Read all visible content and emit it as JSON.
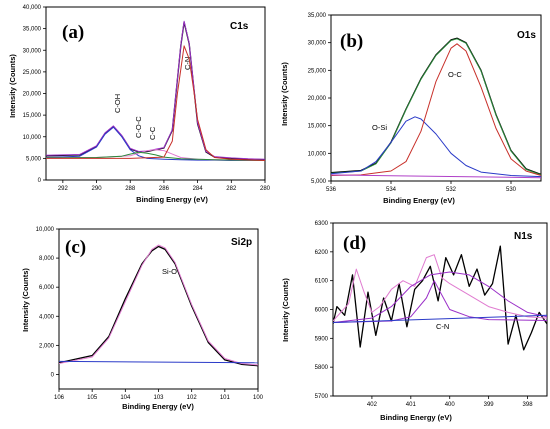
{
  "chart_data": [
    {
      "type": "line",
      "panel": "(a)",
      "title": "C1s",
      "xlabel": "Binding Energy (eV)",
      "ylabel": "Intensity (Counts)",
      "xlim": [
        293,
        280
      ],
      "ylim": [
        0,
        40000
      ],
      "xticks": [
        "292",
        "290",
        "288",
        "286",
        "284",
        "282",
        "280"
      ],
      "yticks": [
        "0",
        "5,000",
        "10,000",
        "15,000",
        "20,000",
        "25,000",
        "30,000",
        "35,000",
        "40,000"
      ],
      "annotations": [
        "C-OH",
        "C-O-C",
        "C-C",
        "C-N"
      ],
      "legend": "none",
      "series": [
        {
          "color": "#000000",
          "x": [
            293,
            291,
            290,
            289.5,
            289,
            288.5,
            288,
            287.5,
            287,
            286.5,
            286,
            285.5,
            285,
            284.8,
            284.5,
            284,
            283.5,
            283,
            282,
            281,
            280
          ],
          "y": [
            5600,
            5800,
            7800,
            10800,
            12400,
            10200,
            7200,
            6500,
            6600,
            7000,
            7400,
            11500,
            31000,
            36500,
            31500,
            13000,
            6500,
            5300,
            5000,
            4800,
            4700
          ]
        },
        {
          "color": "#9b30c8",
          "x": [
            293,
            291,
            290,
            289.5,
            289,
            288.5,
            288,
            287.5,
            287,
            286.5,
            286,
            285.5,
            285,
            284.8,
            284.5,
            284,
            283.5,
            283,
            282,
            281,
            280
          ],
          "y": [
            5700,
            5900,
            7900,
            10900,
            12500,
            10300,
            7300,
            6600,
            6700,
            7100,
            7500,
            11600,
            31200,
            36700,
            31600,
            13200,
            6600,
            5400,
            5100,
            4900,
            4800
          ]
        },
        {
          "color": "#2a3ac8",
          "x": [
            293,
            291,
            290,
            289.5,
            289,
            288.5,
            288,
            287.5,
            287,
            286,
            285,
            284,
            283,
            282,
            280
          ],
          "y": [
            5200,
            5500,
            7600,
            10600,
            12200,
            10000,
            7000,
            5600,
            5000,
            4800,
            4700,
            4600,
            4600,
            4500,
            4500
          ]
        },
        {
          "color": "#e07bd0",
          "x": [
            293,
            290,
            288,
            287.5,
            287,
            286.5,
            286,
            285.5,
            285,
            284,
            282,
            280
          ],
          "y": [
            5100,
            5200,
            5600,
            6200,
            6800,
            7000,
            6800,
            6000,
            5200,
            4800,
            4600,
            4500
          ]
        },
        {
          "color": "#2a8a3a",
          "x": [
            293,
            290,
            288.5,
            288,
            287.5,
            287,
            286.5,
            286,
            285,
            283,
            280
          ],
          "y": [
            5100,
            5200,
            5500,
            6000,
            6400,
            6200,
            5800,
            5300,
            4900,
            4700,
            4500
          ]
        },
        {
          "color": "#c8302a",
          "x": [
            293,
            288,
            286,
            285.5,
            285.2,
            284.8,
            284.5,
            284.2,
            284,
            283.5,
            283,
            282,
            280
          ],
          "y": [
            5000,
            5000,
            5300,
            9000,
            20000,
            31000,
            28000,
            20000,
            14000,
            7000,
            5200,
            4800,
            4500
          ]
        }
      ]
    },
    {
      "type": "line",
      "panel": "(b)",
      "title": "O1s",
      "xlabel": "Binding Energy (eV)",
      "ylabel": "Intensity (Counts)",
      "xlim": [
        536,
        529
      ],
      "ylim": [
        5000,
        35000
      ],
      "xticks": [
        "536",
        "534",
        "532",
        "530"
      ],
      "yticks": [
        "5,000",
        "10,000",
        "15,000",
        "20,000",
        "25,000",
        "30,000",
        "35,000"
      ],
      "annotations": [
        "O-Si",
        "O-C"
      ],
      "legend": "none",
      "series": [
        {
          "color": "#000000",
          "x": [
            536,
            535,
            534.5,
            534,
            533.5,
            533,
            532.5,
            532,
            531.8,
            531.5,
            531,
            530.5,
            530,
            529.5,
            529
          ],
          "y": [
            6500,
            6900,
            8200,
            12000,
            18000,
            23500,
            27800,
            30500,
            30800,
            30000,
            25000,
            17000,
            10500,
            7200,
            6200
          ]
        },
        {
          "color": "#2a8a3a",
          "x": [
            536,
            535,
            534.5,
            534,
            533.5,
            533,
            532.5,
            532,
            531.8,
            531.5,
            531,
            530.5,
            530,
            529.5,
            529
          ],
          "y": [
            6400,
            6800,
            8100,
            11900,
            17900,
            23400,
            27700,
            30400,
            30700,
            29900,
            24900,
            16900,
            10400,
            7100,
            6100
          ]
        },
        {
          "color": "#2a3ac8",
          "x": [
            536,
            535,
            534.5,
            534,
            533.5,
            533.2,
            533,
            532.5,
            532,
            531.5,
            531,
            530,
            529
          ],
          "y": [
            6300,
            6800,
            8500,
            12000,
            15800,
            16600,
            16200,
            13500,
            10000,
            7800,
            6600,
            6000,
            5800
          ]
        },
        {
          "color": "#c8302a",
          "x": [
            536,
            535,
            534,
            533.5,
            533,
            532.5,
            532,
            531.8,
            531.5,
            531,
            530.5,
            530,
            529.5,
            529
          ],
          "y": [
            6000,
            6100,
            6800,
            8500,
            14000,
            23000,
            29000,
            29800,
            28500,
            22000,
            14500,
            9000,
            6800,
            6000
          ]
        },
        {
          "color": "#b040c8",
          "x": [
            536,
            529
          ],
          "y": [
            6100,
            5600
          ]
        }
      ]
    },
    {
      "type": "line",
      "panel": "(c)",
      "title": "Si2p",
      "xlabel": "Binding Energy (eV)",
      "ylabel": "Intensity (Counts)",
      "xlim": [
        106,
        100
      ],
      "ylim": [
        -1000,
        10000
      ],
      "xticks": [
        "106",
        "105",
        "104",
        "103",
        "102",
        "101",
        "100"
      ],
      "yticks": [
        "0",
        "2,000",
        "4,000",
        "6,000",
        "8,000",
        "10,000"
      ],
      "annotations": [
        "Si-O"
      ],
      "legend": "none",
      "series": [
        {
          "color": "#000000",
          "x": [
            106,
            105,
            104.5,
            104,
            103.5,
            103.2,
            103,
            102.8,
            102.5,
            102,
            101.5,
            101,
            100.5,
            100
          ],
          "y": [
            800,
            1300,
            2600,
            5200,
            7600,
            8500,
            8800,
            8600,
            7600,
            4700,
            2200,
            1000,
            700,
            600
          ]
        },
        {
          "color": "#e07bd0",
          "x": [
            106,
            105,
            104.5,
            104,
            103.5,
            103.2,
            103,
            102.8,
            102.5,
            102,
            101.5,
            101,
            100.5,
            100
          ],
          "y": [
            750,
            1200,
            2500,
            5000,
            7500,
            8600,
            8900,
            8700,
            7700,
            4800,
            2300,
            1100,
            750,
            650
          ]
        },
        {
          "color": "#2a3ac8",
          "x": [
            106,
            100
          ],
          "y": [
            900,
            800
          ]
        }
      ]
    },
    {
      "type": "line",
      "panel": "(d)",
      "title": "N1s",
      "xlabel": "Binding Energy (eV)",
      "ylabel": "Intensity (Counts)",
      "xlim": [
        403,
        397.5
      ],
      "ylim": [
        5700,
        6300
      ],
      "xticks": [
        "402",
        "401",
        "400",
        "399",
        "398"
      ],
      "yticks": [
        "5700",
        "5800",
        "5900",
        "6000",
        "6100",
        "6200",
        "6300"
      ],
      "annotations": [
        "C-N"
      ],
      "legend": "none",
      "series": [
        {
          "color": "#000000",
          "x": [
            403,
            402.9,
            402.7,
            402.5,
            402.3,
            402.1,
            401.9,
            401.7,
            401.5,
            401.3,
            401.1,
            400.9,
            400.7,
            400.5,
            400.3,
            400.1,
            399.9,
            399.7,
            399.5,
            399.3,
            399.1,
            398.9,
            398.7,
            398.5,
            398.3,
            398.1,
            397.9,
            397.7,
            397.5
          ],
          "y": [
            5950,
            6010,
            5980,
            6120,
            5870,
            6060,
            5910,
            6040,
            5960,
            6090,
            5940,
            6070,
            6100,
            6150,
            6030,
            6180,
            6120,
            6190,
            6080,
            6140,
            6050,
            6090,
            6220,
            5880,
            5980,
            5860,
            5920,
            5990,
            5950
          ]
        },
        {
          "color": "#e07bd0",
          "x": [
            403,
            402.6,
            402.4,
            402.2,
            402.0,
            401.8,
            401.5,
            401.2,
            400.9,
            400.6,
            400.4,
            400.2,
            400.0,
            399.5,
            399.0,
            398.5,
            398.0,
            397.5
          ],
          "y": [
            5960,
            6020,
            6140,
            6060,
            5990,
            6010,
            6070,
            6100,
            6080,
            6180,
            6190,
            6110,
            6090,
            6050,
            6010,
            5990,
            5975,
            5970
          ]
        },
        {
          "color": "#9b30c8",
          "x": [
            403,
            402,
            401.5,
            401,
            400.5,
            400,
            399.5,
            399,
            398.5,
            398,
            397.5
          ],
          "y": [
            5955,
            5970,
            6010,
            6080,
            6120,
            6130,
            6120,
            6080,
            6030,
            5990,
            5975
          ]
        },
        {
          "color": "#9b30c8",
          "x": [
            403,
            401.5,
            401,
            400.6,
            400.4,
            400.2,
            400,
            399.5,
            399,
            397.5
          ],
          "y": [
            5955,
            5960,
            5975,
            6040,
            6100,
            6050,
            6000,
            5975,
            5965,
            5962
          ]
        },
        {
          "color": "#2a3ac8",
          "x": [
            403,
            397.5
          ],
          "y": [
            5955,
            5980
          ]
        }
      ]
    }
  ]
}
